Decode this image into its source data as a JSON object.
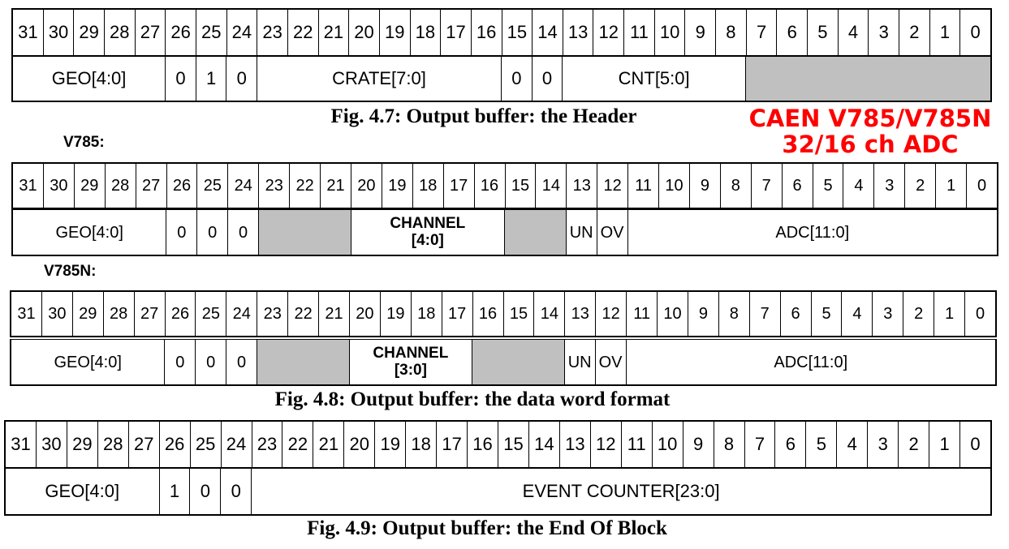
{
  "bits": [
    "31",
    "30",
    "29",
    "28",
    "27",
    "26",
    "25",
    "24",
    "23",
    "22",
    "21",
    "20",
    "19",
    "18",
    "17",
    "16",
    "15",
    "14",
    "13",
    "12",
    "11",
    "10",
    "9",
    "8",
    "7",
    "6",
    "5",
    "4",
    "3",
    "2",
    "1",
    "0"
  ],
  "header": {
    "fields": [
      {
        "label": "GEO[4:0]",
        "span": 5
      },
      {
        "label": "0",
        "span": 1
      },
      {
        "label": "1",
        "span": 1
      },
      {
        "label": "0",
        "span": 1
      },
      {
        "label": "CRATE[7:0]",
        "span": 8
      },
      {
        "label": "0",
        "span": 1
      },
      {
        "label": "0",
        "span": 1
      },
      {
        "label": "CNT[5:0]",
        "span": 6
      },
      {
        "label": "",
        "span": 8,
        "grey": true
      }
    ],
    "caption": "Fig. 4.7: Output buffer: the Header"
  },
  "title_line1": "CAEN V785/V785N",
  "title_line2": "32/16 ch ADC",
  "v785": {
    "label": "V785:",
    "fields": [
      {
        "label": "GEO[4:0]",
        "span": 5
      },
      {
        "label": "0",
        "span": 1
      },
      {
        "label": "0",
        "span": 1
      },
      {
        "label": "0",
        "span": 1
      },
      {
        "label": "",
        "span": 3,
        "grey": true
      },
      {
        "label": "CHANNEL [4:0]",
        "span": 5,
        "bold": true
      },
      {
        "label": "",
        "span": 2,
        "grey": true
      },
      {
        "label": "UN",
        "span": 1
      },
      {
        "label": "OV",
        "span": 1
      },
      {
        "label": "ADC[11:0]",
        "span": 12
      }
    ]
  },
  "v785n": {
    "label": "V785N:",
    "fields": [
      {
        "label": "GEO[4:0]",
        "span": 5
      },
      {
        "label": "0",
        "span": 1
      },
      {
        "label": "0",
        "span": 1
      },
      {
        "label": "0",
        "span": 1
      },
      {
        "label": "",
        "span": 3,
        "grey": true
      },
      {
        "label": "CHANNEL [3:0]",
        "span": 4,
        "bold": true
      },
      {
        "label": "",
        "span": 3,
        "grey": true
      },
      {
        "label": "UN",
        "span": 1
      },
      {
        "label": "OV",
        "span": 1
      },
      {
        "label": "ADC[11:0]",
        "span": 12
      }
    ],
    "caption": "Fig. 4.8: Output buffer: the data word format"
  },
  "eob": {
    "fields": [
      {
        "label": "GEO[4:0]",
        "span": 5
      },
      {
        "label": "1",
        "span": 1
      },
      {
        "label": "0",
        "span": 1
      },
      {
        "label": "0",
        "span": 1
      },
      {
        "label": "EVENT COUNTER[23:0]",
        "span": 24
      }
    ],
    "caption": "Fig. 4.9: Output buffer: the End Of Block"
  }
}
